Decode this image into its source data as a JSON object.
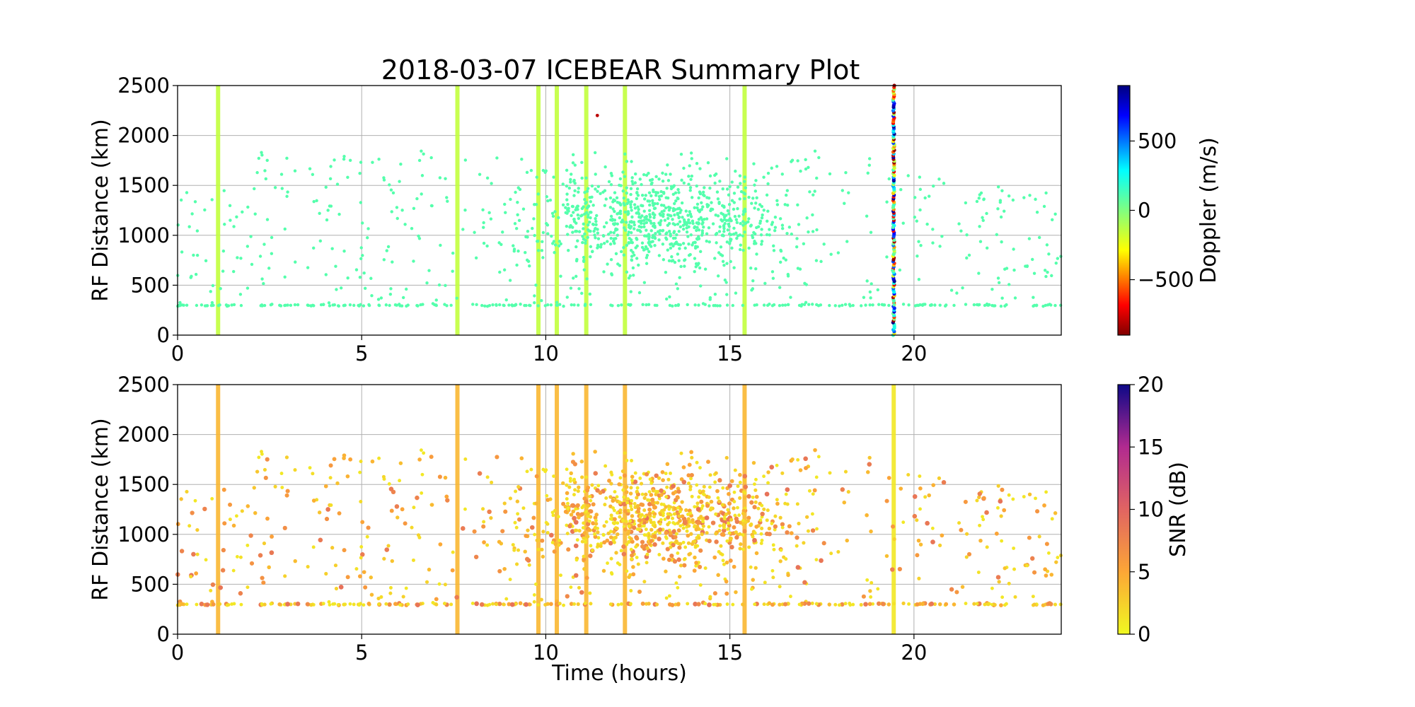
{
  "title": "2018-03-07 ICEBEAR Summary Plot",
  "chart_data": [
    {
      "type": "scatter",
      "panel": "doppler",
      "xlabel": "",
      "ylabel": "RF Distance (km)",
      "xlim": [
        0,
        24
      ],
      "ylim": [
        0,
        2500
      ],
      "xticks": [
        0,
        5,
        10,
        15,
        20
      ],
      "yticks": [
        0,
        500,
        1000,
        1500,
        2000,
        2500
      ],
      "grid": true,
      "colorbar": {
        "label": "Doppler (m/s)",
        "range": [
          -900,
          900
        ],
        "ticks": [
          500,
          0,
          -500
        ],
        "tick_labels": [
          "500",
          "0",
          "−500"
        ],
        "colormap": "jet_r"
      },
      "vertical_bands": [
        {
          "time": 1.1,
          "value": -150
        },
        {
          "time": 7.6,
          "value": -150
        },
        {
          "time": 9.8,
          "value": -150
        },
        {
          "time": 10.3,
          "value": -150
        },
        {
          "time": 11.1,
          "value": -150
        },
        {
          "time": 12.15,
          "value": -150
        },
        {
          "time": 15.4,
          "value": -150
        }
      ],
      "mixed_band": {
        "time": 19.45,
        "range_km": [
          0,
          2500
        ],
        "value_range": [
          -900,
          900
        ]
      },
      "scatter_value": 100,
      "outlier": {
        "time": 11.4,
        "range_km": 2200,
        "value": -800
      },
      "point_cloud": {
        "time_range": [
          0,
          24
        ],
        "range_km": [
          300,
          1900
        ],
        "dense_region": {
          "time": [
            8,
            18
          ],
          "range_km": [
            700,
            1700
          ]
        },
        "baseline_km": 300
      }
    },
    {
      "type": "scatter",
      "panel": "snr",
      "xlabel": "Time (hours)",
      "ylabel": "RF Distance (km)",
      "xlim": [
        0,
        24
      ],
      "ylim": [
        0,
        2500
      ],
      "xticks": [
        0,
        5,
        10,
        15,
        20
      ],
      "yticks": [
        0,
        500,
        1000,
        1500,
        2000,
        2500
      ],
      "grid": true,
      "colorbar": {
        "label": "SNR (dB)",
        "range": [
          0,
          20
        ],
        "ticks": [
          20,
          15,
          10,
          5,
          0
        ],
        "tick_labels": [
          "20",
          "15",
          "10",
          "5",
          "0"
        ],
        "colormap": "plasma_r"
      },
      "vertical_bands": [
        {
          "time": 1.1,
          "value": 4
        },
        {
          "time": 7.6,
          "value": 4
        },
        {
          "time": 9.8,
          "value": 4
        },
        {
          "time": 10.3,
          "value": 4
        },
        {
          "time": 11.1,
          "value": 4
        },
        {
          "time": 12.15,
          "value": 4
        },
        {
          "time": 15.4,
          "value": 4
        },
        {
          "time": 19.45,
          "value": 1
        }
      ],
      "scatter_value_range": [
        1,
        9
      ],
      "point_cloud": {
        "time_range": [
          0,
          24
        ],
        "range_km": [
          300,
          1900
        ],
        "dense_region": {
          "time": [
            8,
            18
          ],
          "range_km": [
            700,
            1700
          ]
        },
        "baseline_km": 300
      }
    }
  ]
}
